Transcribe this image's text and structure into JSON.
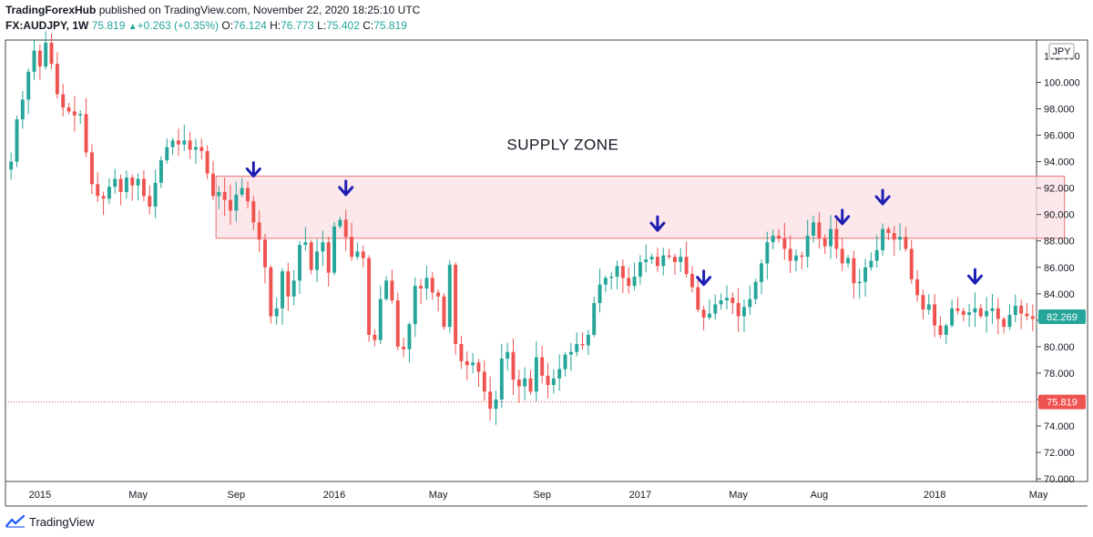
{
  "header": {
    "publisher": "TradingForexHub",
    "published_text": "published on TradingView.com, November 22, 2020 18:25:10 UTC"
  },
  "legend": {
    "symbol": "FX:AUDJPY, 1W",
    "last": "75.819",
    "change": "+0.263 (+0.35%)",
    "o_label": "O:",
    "o": "76.124",
    "h_label": "H:",
    "h": "76.773",
    "l_label": "L:",
    "l": "75.402",
    "c_label": "C:",
    "c": "75.819"
  },
  "footer": {
    "brand": "TradingView"
  },
  "colors": {
    "up": "#26a69a",
    "down": "#ef5350",
    "zone_fill": "#fbdfe3",
    "zone_stroke": "#e57373",
    "arrow": "#1e1eb4",
    "price_tag_green": "#26a69a",
    "price_tag_red": "#ef5350"
  },
  "chart_data": {
    "type": "candlestick",
    "timeframe": "1W",
    "currency_badge": "JPY",
    "y_ticks": [
      "100.000",
      "98.000",
      "96.000",
      "94.000",
      "92.000",
      "90.000",
      "88.000",
      "86.000",
      "84.000",
      "82.000",
      "80.000",
      "78.000",
      "76.000",
      "74.000",
      "72.000",
      "70.000"
    ],
    "y_top_partial": "102.000",
    "ylim": [
      69.8,
      103.2
    ],
    "x_labels": [
      {
        "label": "2015",
        "week": 5
      },
      {
        "label": "May",
        "week": 22
      },
      {
        "label": "Sep",
        "week": 39
      },
      {
        "label": "2016",
        "week": 56
      },
      {
        "label": "May",
        "week": 74
      },
      {
        "label": "Sep",
        "week": 92
      },
      {
        "label": "2017",
        "week": 109
      },
      {
        "label": "May",
        "week": 126
      },
      {
        "label": "Aug",
        "week": 140
      },
      {
        "label": "2018",
        "week": 160
      },
      {
        "label": "May",
        "week": 178
      }
    ],
    "current_price": {
      "label": "82.269",
      "value": 82.269
    },
    "alt_price": {
      "label": "75.819",
      "value": 75.819
    },
    "supply_zone": {
      "label": "SUPPLY ZONE",
      "from_week": 36,
      "to_week": 182,
      "low": 88.2,
      "high": 92.9
    },
    "arrows_at_weeks": [
      42,
      58,
      112,
      120,
      144,
      151,
      167
    ],
    "closes": [
      94.0,
      97.2,
      98.7,
      100.8,
      102.4,
      101.2,
      103.0,
      101.4,
      99.1,
      98.1,
      97.8,
      97.5,
      97.6,
      94.7,
      92.3,
      91.4,
      91.2,
      92.1,
      92.7,
      91.7,
      92.8,
      92.2,
      92.7,
      91.4,
      90.6,
      92.4,
      94.1,
      95.1,
      95.6,
      95.3,
      95.6,
      94.9,
      95.1,
      94.8,
      93.1,
      91.4,
      91.7,
      91.1,
      90.3,
      91.5,
      92.0,
      91.0,
      89.4,
      88.1,
      86.0,
      82.3,
      82.9,
      85.7,
      83.8,
      85.0,
      87.7,
      87.9,
      85.8,
      87.2,
      87.9,
      85.6,
      89.1,
      89.6,
      88.3,
      86.8,
      87.2,
      86.7,
      80.9,
      80.5,
      83.6,
      85.0,
      83.5,
      80.0,
      79.8,
      81.7,
      84.6,
      84.4,
      85.2,
      84.1,
      83.8,
      81.5,
      86.2,
      80.2,
      78.9,
      78.6,
      78.8,
      78.1,
      76.6,
      75.3,
      76.0,
      79.1,
      79.6,
      77.5,
      77.0,
      77.6,
      76.6,
      79.2,
      77.8,
      77.1,
      77.6,
      78.3,
      79.4,
      79.6,
      80.2,
      80.1,
      80.9,
      83.3,
      84.7,
      85.2,
      85.3,
      86.1,
      85.2,
      84.6,
      85.3,
      86.4,
      86.6,
      86.8,
      86.1,
      86.9,
      86.8,
      86.4,
      86.8,
      85.5,
      84.5,
      82.8,
      82.2,
      82.5,
      83.2,
      83.5,
      83.7,
      83.3,
      82.3,
      83.0,
      83.6,
      84.9,
      86.3,
      87.9,
      88.4,
      88.2,
      87.4,
      86.5,
      86.9,
      86.8,
      88.4,
      89.4,
      88.2,
      87.6,
      88.9,
      87.4,
      86.3,
      86.7,
      84.8,
      84.9,
      86.0,
      86.5,
      87.3,
      88.9,
      88.6,
      88.1,
      88.3,
      87.4,
      85.1,
      83.9,
      82.8,
      83.2,
      81.6,
      80.9,
      81.6,
      82.9,
      82.7,
      82.4,
      82.6,
      82.9,
      82.3,
      82.7,
      82.9,
      82.1,
      81.5,
      82.4,
      83.1,
      82.5,
      82.3,
      82.1
    ]
  }
}
